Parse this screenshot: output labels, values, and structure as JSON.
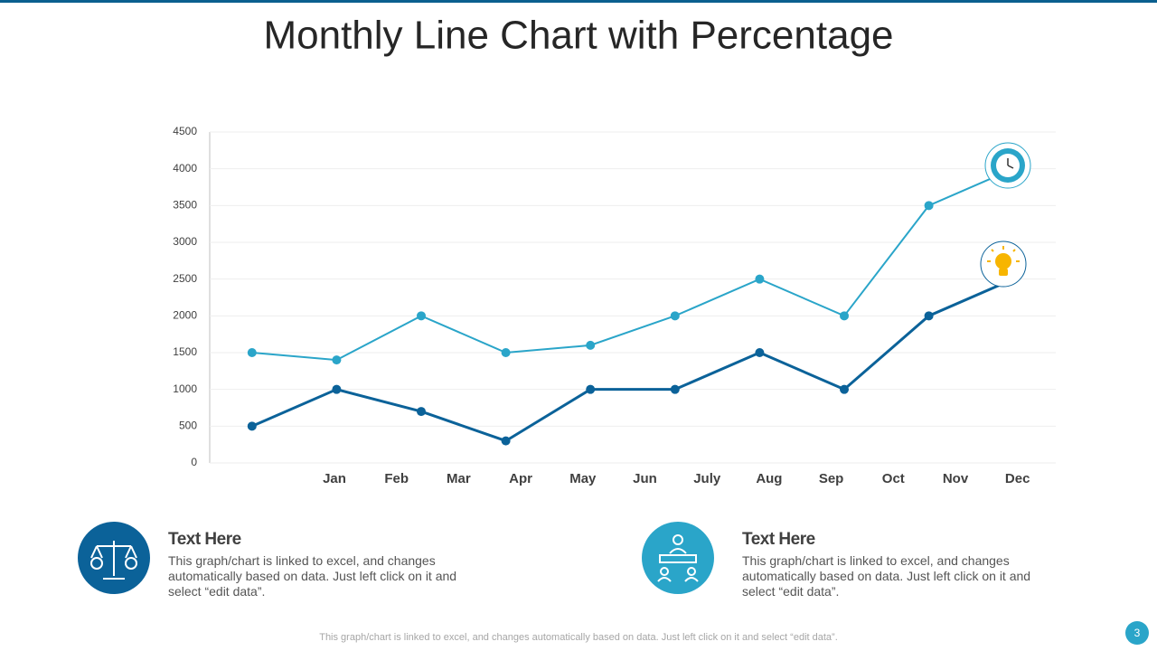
{
  "title": "Monthly Line Chart with Percentage",
  "chart_data": {
    "type": "line",
    "categories": [
      null,
      null,
      null,
      null,
      null,
      null,
      null,
      null,
      null,
      null
    ],
    "month_labels": [
      "Jan",
      "Feb",
      "Mar",
      "Apr",
      "May",
      "Jun",
      "July",
      "Aug",
      "Sep",
      "Oct",
      "Nov",
      "Dec"
    ],
    "series": [
      {
        "color": "#2aa5c9",
        "values": [
          1500,
          1400,
          2000,
          1500,
          1600,
          2000,
          2500,
          2000,
          3500,
          4000
        ]
      },
      {
        "color": "#0b6299",
        "values": [
          500,
          1000,
          700,
          300,
          1000,
          1000,
          1500,
          1000,
          2000,
          2500
        ]
      }
    ],
    "ylim": [
      0,
      4500
    ],
    "yticks": [
      0,
      500,
      1000,
      1500,
      2000,
      2500,
      3000,
      3500,
      4000,
      4500
    ],
    "grid": true
  },
  "blocks": [
    {
      "heading": "Text Here",
      "body": "This graph/chart is linked to excel, and changes automatically based on data. Just left click on it and select “edit data”."
    },
    {
      "heading": "Text Here",
      "body": "This graph/chart is linked to excel, and changes automatically based on data. Just left click on it and select “edit data”."
    }
  ],
  "footer": "This graph/chart is linked to excel,  and changes automatically based on data. Just left click on it and select “edit data”.",
  "page_number": 3
}
